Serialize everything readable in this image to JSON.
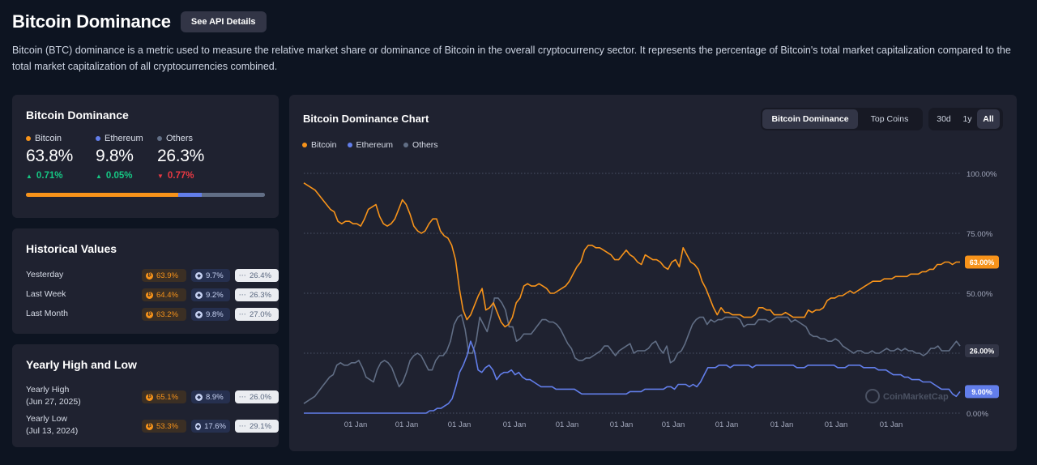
{
  "header": {
    "title": "Bitcoin Dominance",
    "api_button": "See API Details",
    "description": "Bitcoin (BTC) dominance is a metric used to measure the relative market share or dominance of Bitcoin in the overall cryptocurrency sector. It represents the percentage of Bitcoin's total market capitalization compared to the total market capitalization of all cryptocurrencies combined."
  },
  "colors": {
    "bitcoin": "#f7931a",
    "ethereum": "#627eea",
    "others": "#616e85",
    "up": "#16c784",
    "down": "#ea3943"
  },
  "dominance": {
    "title": "Bitcoin Dominance",
    "bitcoin": {
      "label": "Bitcoin",
      "value": "63.8%",
      "change": "0.71%",
      "direction": "up",
      "share": 63.8
    },
    "ethereum": {
      "label": "Ethereum",
      "value": "9.8%",
      "change": "0.05%",
      "direction": "up",
      "share": 9.8
    },
    "others": {
      "label": "Others",
      "value": "26.3%",
      "change": "0.77%",
      "direction": "down",
      "share": 26.3
    }
  },
  "historical": {
    "title": "Historical Values",
    "rows": [
      {
        "label": "Yesterday",
        "btc": "63.9%",
        "eth": "9.7%",
        "others": "26.4%"
      },
      {
        "label": "Last Week",
        "btc": "64.4%",
        "eth": "9.2%",
        "others": "26.3%"
      },
      {
        "label": "Last Month",
        "btc": "63.2%",
        "eth": "9.8%",
        "others": "27.0%"
      }
    ]
  },
  "yearly": {
    "title": "Yearly High and Low",
    "rows": [
      {
        "label": "Yearly High",
        "date": "(Jun 27, 2025)",
        "btc": "65.1%",
        "eth": "8.9%",
        "others": "26.0%"
      },
      {
        "label": "Yearly Low",
        "date": "(Jul 13, 2024)",
        "btc": "53.3%",
        "eth": "17.6%",
        "others": "29.1%"
      }
    ]
  },
  "chart": {
    "title": "Bitcoin Dominance Chart",
    "tabs": [
      "Bitcoin Dominance",
      "Top Coins"
    ],
    "active_tab": "Bitcoin Dominance",
    "ranges": [
      "30d",
      "1y",
      "All"
    ],
    "active_range": "All",
    "legend": [
      "Bitcoin",
      "Ethereum",
      "Others"
    ],
    "watermark": "CoinMarketCap",
    "badges": {
      "bitcoin": "63.00%",
      "others": "26.00%",
      "ethereum": "9.00%"
    }
  },
  "chart_data": {
    "type": "line",
    "title": "Bitcoin Dominance Chart",
    "x_tick_labels": [
      "01 Jan",
      "01 Jan",
      "01 Jan",
      "01 Jan",
      "01 Jan",
      "01 Jan",
      "01 Jan",
      "01 Jan",
      "01 Jan",
      "01 Jan",
      "01 Jan",
      "01 Jan"
    ],
    "y_tick_labels": [
      "100.00%",
      "75.00%",
      "50.00%",
      "25.00%",
      "0.00%"
    ],
    "ylim": [
      0,
      100
    ],
    "grid": true,
    "legend_position": "top-left",
    "series": [
      {
        "name": "Bitcoin",
        "values": [
          96,
          95,
          94,
          93,
          91,
          89,
          87,
          85,
          84,
          80,
          79,
          80,
          80,
          79,
          79,
          78,
          81,
          85,
          86,
          87,
          82,
          79,
          78,
          79,
          81,
          85,
          89,
          87,
          83,
          78,
          76,
          75,
          76,
          79,
          81,
          81,
          76,
          74,
          73,
          70,
          64,
          52,
          43,
          39,
          41,
          45,
          49,
          52,
          43,
          44,
          46,
          42,
          38,
          36,
          37,
          40,
          46,
          48,
          53,
          54,
          53,
          53,
          54,
          53,
          52,
          50,
          50,
          51,
          52,
          53,
          55,
          58,
          61,
          63,
          68,
          70,
          70,
          69,
          69,
          68,
          67,
          66,
          64,
          64,
          66,
          68,
          66,
          65,
          63,
          62,
          66,
          65,
          64,
          64,
          63,
          61,
          60,
          63,
          64,
          61,
          69,
          66,
          63,
          62,
          60,
          55,
          52,
          48,
          44,
          41,
          44,
          42,
          42,
          41,
          41,
          41,
          40,
          40,
          40,
          41,
          44,
          44,
          43,
          43,
          41,
          41,
          41,
          42,
          41,
          40,
          40,
          40,
          40,
          43,
          42,
          43,
          43,
          44,
          47,
          48,
          48,
          49,
          49,
          50,
          51,
          50,
          51,
          52,
          53,
          54,
          55,
          55,
          55,
          56,
          56,
          56,
          57,
          57,
          57,
          57,
          58,
          58,
          58,
          59,
          59,
          60,
          60,
          62,
          62,
          63,
          63,
          62,
          63,
          63
        ]
      },
      {
        "name": "Ethereum",
        "values": [
          0,
          0,
          0,
          0,
          0,
          0,
          0,
          0,
          0,
          0,
          0,
          0,
          0,
          0,
          0,
          0,
          0,
          0,
          0,
          0,
          0,
          0,
          0,
          0,
          0,
          0,
          0,
          0,
          0,
          0,
          0,
          0,
          0,
          0,
          1,
          1,
          2,
          2,
          3,
          4,
          6,
          11,
          17,
          20,
          24,
          30,
          26,
          18,
          17,
          19,
          20,
          18,
          14,
          16,
          17,
          17,
          18,
          16,
          17,
          15,
          14,
          14,
          13,
          12,
          11,
          11,
          11,
          11,
          10,
          10,
          10,
          10,
          10,
          10,
          9,
          8,
          8,
          8,
          8,
          8,
          8,
          8,
          8,
          8,
          8,
          8,
          8,
          8,
          9,
          9,
          9,
          9,
          10,
          10,
          10,
          10,
          10,
          10,
          11,
          11,
          10,
          12,
          12,
          12,
          11,
          12,
          11,
          13,
          16,
          19,
          19,
          19,
          20,
          20,
          20,
          19,
          20,
          20,
          20,
          20,
          20,
          19,
          20,
          20,
          20,
          20,
          20,
          20,
          20,
          20,
          20,
          20,
          20,
          19,
          19,
          19,
          20,
          20,
          20,
          20,
          20,
          20,
          20,
          20,
          19,
          19,
          19,
          20,
          20,
          20,
          20,
          19,
          19,
          19,
          19,
          18,
          18,
          18,
          17,
          16,
          16,
          16,
          15,
          15,
          14,
          14,
          14,
          13,
          13,
          13,
          12,
          11,
          10,
          10,
          10,
          8,
          7,
          9
        ]
      },
      {
        "name": "Others",
        "values": [
          4,
          5,
          6,
          7,
          9,
          11,
          13,
          15,
          16,
          20,
          21,
          20,
          20,
          21,
          21,
          22,
          19,
          15,
          14,
          13,
          18,
          21,
          22,
          21,
          19,
          15,
          11,
          13,
          17,
          22,
          24,
          25,
          24,
          21,
          18,
          18,
          22,
          24,
          24,
          26,
          30,
          37,
          40,
          41,
          35,
          25,
          25,
          30,
          40,
          37,
          34,
          40,
          48,
          48,
          46,
          43,
          36,
          36,
          30,
          31,
          33,
          33,
          33,
          35,
          37,
          39,
          39,
          38,
          38,
          37,
          35,
          32,
          29,
          27,
          23,
          22,
          22,
          23,
          23,
          24,
          25,
          26,
          28,
          28,
          26,
          24,
          26,
          27,
          28,
          29,
          25,
          26,
          26,
          26,
          27,
          29,
          30,
          27,
          25,
          28,
          21,
          22,
          25,
          26,
          29,
          33,
          37,
          39,
          40,
          40,
          37,
          39,
          38,
          39,
          39,
          40,
          40,
          40,
          40,
          39,
          36,
          37,
          37,
          37,
          39,
          39,
          39,
          38,
          39,
          40,
          40,
          40,
          40,
          38,
          39,
          38,
          37,
          36,
          33,
          32,
          32,
          31,
          31,
          30,
          30,
          31,
          30,
          28,
          27,
          26,
          25,
          26,
          26,
          25,
          25,
          26,
          25,
          25,
          26,
          27,
          26,
          26,
          27,
          26,
          27,
          26,
          26,
          25,
          25,
          24,
          25,
          27,
          27,
          28,
          26,
          26,
          26,
          28,
          30,
          28
        ]
      }
    ]
  }
}
